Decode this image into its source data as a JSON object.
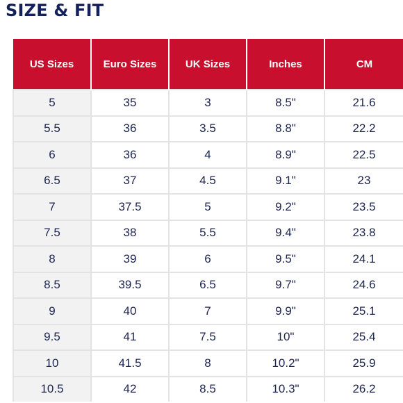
{
  "title": "SIZE & FIT",
  "table": {
    "headers": [
      "US Sizes",
      "Euro Sizes",
      "UK Sizes",
      "Inches",
      "CM"
    ],
    "rows": [
      [
        "5",
        "35",
        "3",
        "8.5\"",
        "21.6"
      ],
      [
        "5.5",
        "36",
        "3.5",
        "8.8\"",
        "22.2"
      ],
      [
        "6",
        "36",
        "4",
        "8.9\"",
        "22.5"
      ],
      [
        "6.5",
        "37",
        "4.5",
        "9.1\"",
        "23"
      ],
      [
        "7",
        "37.5",
        "5",
        "9.2\"",
        "23.5"
      ],
      [
        "7.5",
        "38",
        "5.5",
        "9.4\"",
        "23.8"
      ],
      [
        "8",
        "39",
        "6",
        "9.5\"",
        "24.1"
      ],
      [
        "8.5",
        "39.5",
        "6.5",
        "9.7\"",
        "24.6"
      ],
      [
        "9",
        "40",
        "7",
        "9.9\"",
        "25.1"
      ],
      [
        "9.5",
        "41",
        "7.5",
        "10\"",
        "25.4"
      ],
      [
        "10",
        "41.5",
        "8",
        "10.2\"",
        "25.9"
      ],
      [
        "10.5",
        "42",
        "8.5",
        "10.3\"",
        "26.2"
      ]
    ]
  },
  "colors": {
    "header_background": "#c8102e",
    "header_text": "#ffffff",
    "title_text": "#14215a",
    "body_text": "#1c2450",
    "first_column_background": "#f2f2f2",
    "grid_lines": "#e3e3e3"
  }
}
